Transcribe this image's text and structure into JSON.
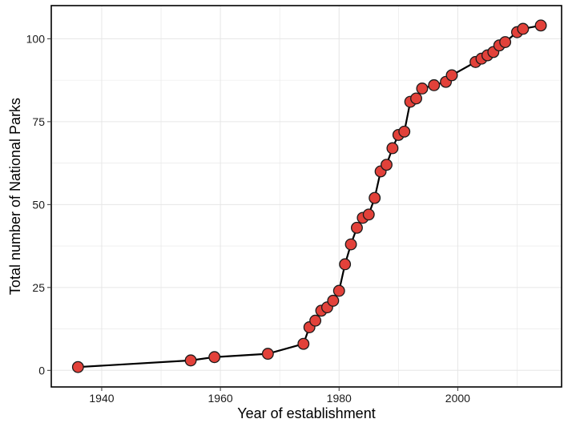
{
  "chart_data": {
    "type": "line",
    "title": "",
    "xlabel": "Year of establishment",
    "ylabel": "Total number of National Parks",
    "xlim": [
      1931.5,
      2017.5
    ],
    "ylim": [
      -5,
      110
    ],
    "xticks": [
      1940,
      1960,
      1980,
      2000
    ],
    "yticks": [
      0,
      25,
      50,
      75,
      100
    ],
    "grid": true,
    "markers": true,
    "colors": {
      "marker_fill": "#e2413a",
      "marker_stroke": "#1a1a1a",
      "line": "#000000",
      "grid": "#e6e6e6",
      "frame": "#000000"
    },
    "series": [
      {
        "x": [
          1936,
          1955,
          1959,
          1968,
          1974,
          1975,
          1976,
          1977,
          1978,
          1979,
          1980,
          1981,
          1982,
          1983,
          1984,
          1985,
          1986,
          1987,
          1988,
          1989,
          1990,
          1991,
          1992,
          1993,
          1994,
          1996,
          1998,
          1999,
          2003,
          2004,
          2005,
          2006,
          2007,
          2008,
          2010,
          2011,
          2014
        ],
        "y": [
          1,
          3,
          4,
          5,
          8,
          13,
          15,
          18,
          19,
          21,
          24,
          32,
          38,
          43,
          46,
          47,
          52,
          60,
          62,
          67,
          71,
          72,
          81,
          82,
          85,
          86,
          87,
          89,
          93,
          94,
          95,
          96,
          98,
          99,
          102,
          103,
          104
        ]
      }
    ]
  }
}
